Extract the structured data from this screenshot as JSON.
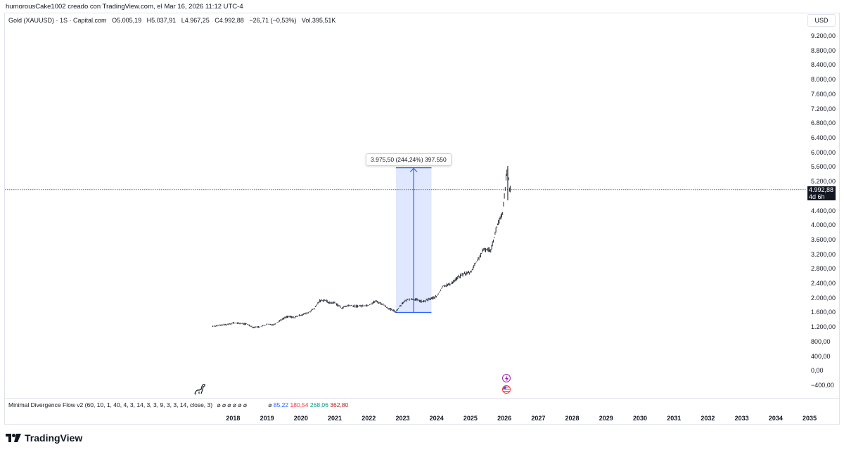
{
  "attribution": "humorousCake1002 creado con TradingView.com, el Mar 16, 2026 11:12 UTC-4",
  "legend": {
    "symbol": "Gold (XAUUSD) · 1S · Capital.com",
    "open": "O5.005,19",
    "high": "H5.037,91",
    "low": "L4.967,25",
    "close": "C4.992,88",
    "change": "−26,71 (−0,53%)",
    "volume": "Vol.395,51K"
  },
  "currency": "USD",
  "price_tag": {
    "price": "4.992,88",
    "countdown": "4d 6h"
  },
  "measure_label": "3.975,50 (244,24%) 397.550",
  "indicator": {
    "name": "Minimal Divergence Flow v2 (60, 10, 1, 40, 4, 3, 14, 3, 3, 9, 3, 3, 14, close, 3)",
    "symbols": "⌀ ⌀ ⌀ ⌀ ⌀ ⌀",
    "symbol2": "⌀",
    "v1": "85,22",
    "v2": "180,54",
    "v3": "268,06",
    "v4": "362,80"
  },
  "brand": "TradingView",
  "chart_data": {
    "type": "line",
    "title": "Gold (XAUUSD) · 1S · Capital.com",
    "x_ticks": [
      "2018",
      "2019",
      "2020",
      "2021",
      "2022",
      "2023",
      "2024",
      "2025",
      "2026",
      "2027",
      "2028",
      "2029",
      "2030",
      "2031",
      "2032",
      "2033",
      "2034",
      "2035"
    ],
    "y_ticks": [
      "9.200,00",
      "8.800,00",
      "8.400,00",
      "8.000,00",
      "7.600,00",
      "7.200,00",
      "6.800,00",
      "6.400,00",
      "6.000,00",
      "5.600,00",
      "5.200,00",
      "4.800,00",
      "4.400,00",
      "4.000,00",
      "3.600,00",
      "3.200,00",
      "2.800,00",
      "2.400,00",
      "2.000,00",
      "1.600,00",
      "1.200,00",
      "800,00",
      "400,00",
      "0,00",
      "−400,00"
    ],
    "ylim": [
      -400,
      9200
    ],
    "xlim": [
      2017.1,
      2035.6
    ],
    "current_price": 4992.88,
    "measure": {
      "x_start": 2022.8,
      "x_end": 2023.85,
      "y_start": 1620,
      "y_end": 5595
    },
    "series": [
      {
        "name": "XAUUSD",
        "x": [
          2017.4,
          2017.6,
          2017.8,
          2018.0,
          2018.2,
          2018.4,
          2018.6,
          2018.8,
          2019.0,
          2019.2,
          2019.4,
          2019.6,
          2019.8,
          2020.0,
          2020.2,
          2020.4,
          2020.55,
          2020.7,
          2020.85,
          2021.0,
          2021.2,
          2021.4,
          2021.6,
          2021.8,
          2022.0,
          2022.2,
          2022.4,
          2022.6,
          2022.8,
          2023.0,
          2023.2,
          2023.4,
          2023.6,
          2023.8,
          2024.0,
          2024.2,
          2024.4,
          2024.6,
          2024.8,
          2025.0,
          2025.2,
          2025.4,
          2025.6,
          2025.8,
          2025.95,
          2026.05,
          2026.1,
          2026.15,
          2026.2
        ],
        "values": [
          1240,
          1265,
          1285,
          1330,
          1320,
          1300,
          1210,
          1225,
          1290,
          1285,
          1410,
          1510,
          1480,
          1550,
          1600,
          1730,
          1940,
          1960,
          1880,
          1890,
          1740,
          1810,
          1790,
          1800,
          1820,
          1930,
          1850,
          1720,
          1640,
          1890,
          1990,
          1970,
          1910,
          1990,
          2050,
          2350,
          2390,
          2560,
          2680,
          2720,
          3050,
          3350,
          3340,
          4050,
          4320,
          5300,
          5560,
          4990,
          5090
        ]
      }
    ]
  }
}
